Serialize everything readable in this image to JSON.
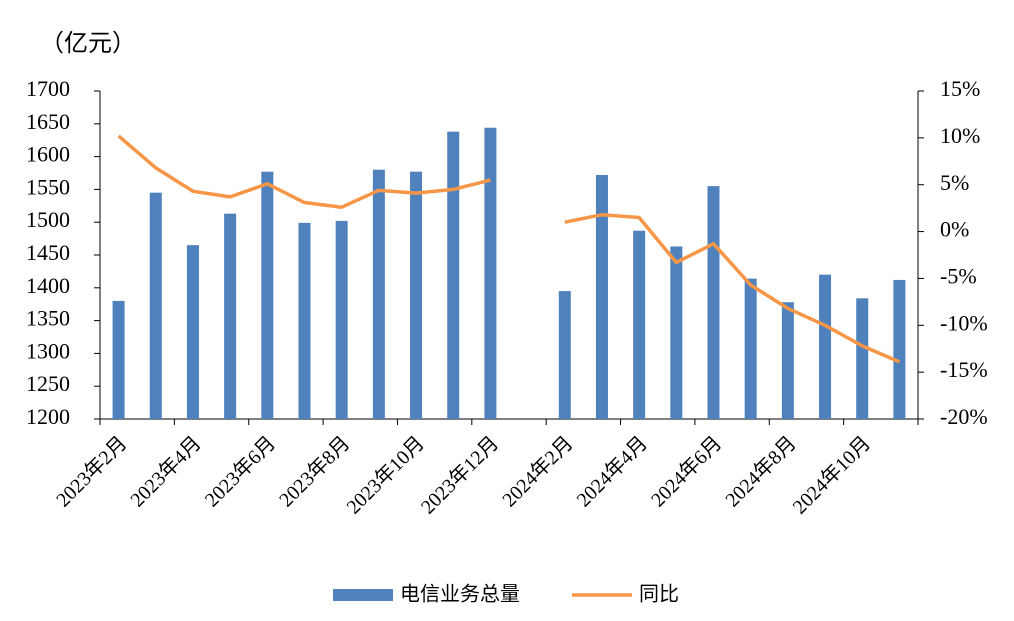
{
  "chart_data": {
    "type": "bar-line",
    "unit_label": "（亿元）",
    "categories": [
      "2023年2月",
      null,
      "2023年4月",
      null,
      "2023年6月",
      null,
      "2023年8月",
      null,
      "2023年10月",
      null,
      "2023年12月",
      null,
      "2024年2月",
      null,
      "2024年4月",
      null,
      "2024年6月",
      null,
      "2024年8月",
      null,
      "2024年10月",
      null
    ],
    "series": [
      {
        "name": "电信业务总量",
        "type": "bar",
        "color": "#4f81bd",
        "values": [
          1380,
          1545,
          1465,
          1513,
          1577,
          1499,
          1502,
          1580,
          1577,
          1638,
          1644,
          null,
          1395,
          1572,
          1487,
          1463,
          1555,
          1414,
          1378,
          1420,
          1384,
          1412
        ]
      },
      {
        "name": "同比",
        "type": "line",
        "axis": "y2",
        "color": "#f79646",
        "values": [
          10.2,
          6.8,
          4.3,
          3.7,
          5.1,
          3.1,
          2.6,
          4.4,
          4.1,
          4.5,
          5.5,
          null,
          1.0,
          1.8,
          1.5,
          -3.3,
          -1.3,
          -5.7,
          -8.2,
          -10.0,
          -12.2,
          -13.9
        ]
      }
    ],
    "ylim": [
      1200,
      1700
    ],
    "yticks": [
      1200,
      1250,
      1300,
      1350,
      1400,
      1450,
      1500,
      1550,
      1600,
      1650,
      1700
    ],
    "y2lim": [
      -20,
      15
    ],
    "y2ticks": [
      {
        "value": -20,
        "label": "-20%"
      },
      {
        "value": -15,
        "label": "-15%"
      },
      {
        "value": -10,
        "label": "-10%"
      },
      {
        "value": -5,
        "label": "-5%"
      },
      {
        "value": 0,
        "label": "0%"
      },
      {
        "value": 5,
        "label": "5%"
      },
      {
        "value": 10,
        "label": "10%"
      },
      {
        "value": 15,
        "label": "15%"
      }
    ],
    "legend": "bottom"
  }
}
